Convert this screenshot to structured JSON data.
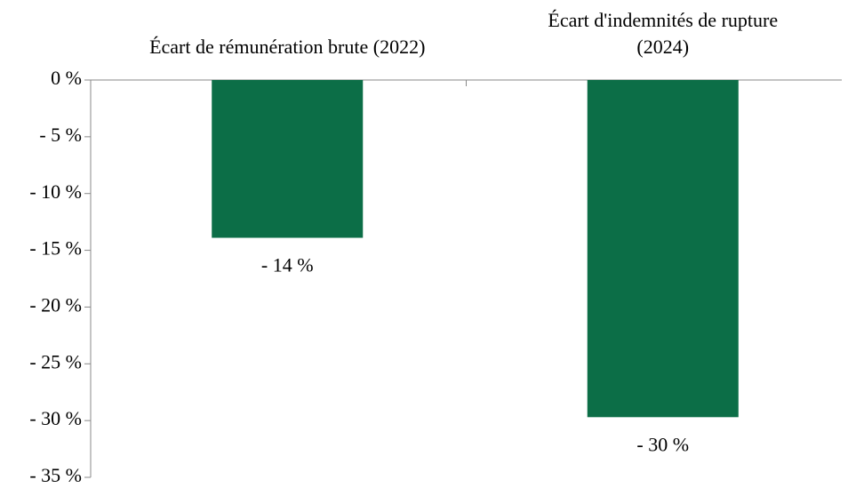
{
  "chart_data": {
    "type": "bar",
    "categories": [
      "Écart de rémunération brute (2022)",
      "Écart d'indemnités de rupture (2024)"
    ],
    "values": [
      -13.9,
      -29.7
    ],
    "value_labels": [
      "- 14 %",
      "- 30 %"
    ],
    "color": "#0c6e47",
    "ylim": [
      -35,
      0
    ],
    "yticks": [
      {
        "value": 0,
        "label": "0 %"
      },
      {
        "value": -5,
        "label": "- 5 %"
      },
      {
        "value": -10,
        "label": "- 10 %"
      },
      {
        "value": -15,
        "label": "- 15 %"
      },
      {
        "value": -20,
        "label": "- 20 %"
      },
      {
        "value": -25,
        "label": "- 25 %"
      },
      {
        "value": -30,
        "label": "- 30 %"
      },
      {
        "value": -35,
        "label": "- 35 %"
      }
    ],
    "grid": false
  }
}
